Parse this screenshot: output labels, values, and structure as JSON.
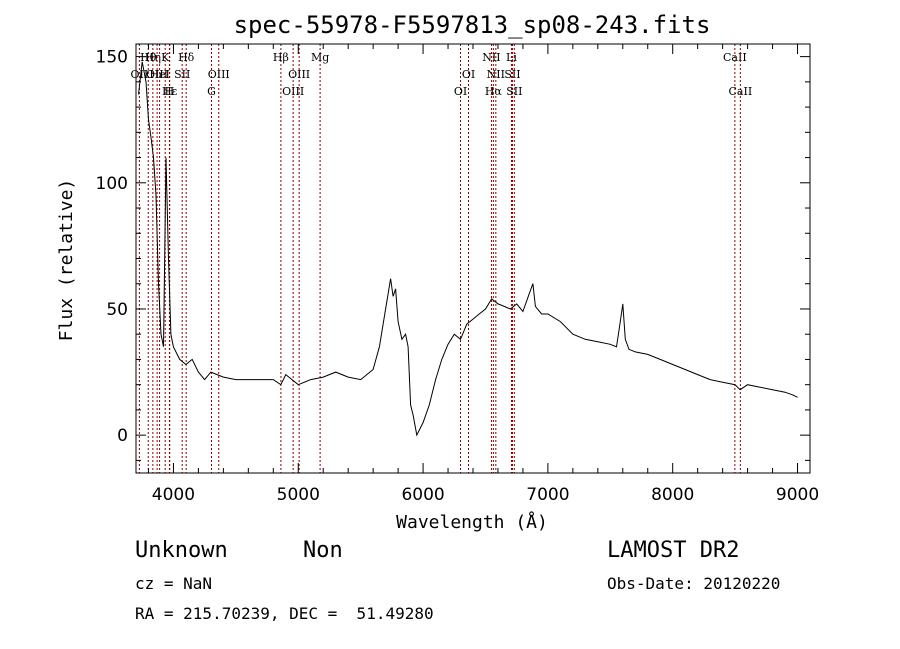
{
  "chart_data": {
    "type": "line",
    "title": "spec-55978-F5597813_sp08-243.fits",
    "xlabel": "Wavelength (Å)",
    "ylabel": "Flux (relative)",
    "xlim": [
      3700,
      9100
    ],
    "ylim": [
      -15,
      155
    ],
    "x_ticks": [
      4000,
      5000,
      6000,
      7000,
      8000,
      9000
    ],
    "y_ticks": [
      0,
      50,
      100,
      150
    ],
    "grid": false,
    "legend": "none",
    "series": [
      {
        "color": "#000000",
        "x": [
          3720,
          3750,
          3780,
          3800,
          3820,
          3840,
          3860,
          3880,
          3900,
          3920,
          3940,
          3960,
          3980,
          4000,
          4050,
          4100,
          4150,
          4200,
          4250,
          4300,
          4350,
          4400,
          4500,
          4600,
          4700,
          4800,
          4860,
          4900,
          5000,
          5100,
          5200,
          5300,
          5400,
          5500,
          5600,
          5650,
          5700,
          5740,
          5760,
          5780,
          5800,
          5830,
          5860,
          5880,
          5900,
          5920,
          5950,
          6000,
          6050,
          6100,
          6150,
          6200,
          6250,
          6300,
          6350,
          6400,
          6450,
          6500,
          6550,
          6600,
          6650,
          6700,
          6750,
          6800,
          6850,
          6880,
          6900,
          6950,
          7000,
          7100,
          7200,
          7300,
          7400,
          7500,
          7550,
          7580,
          7600,
          7620,
          7650,
          7700,
          7800,
          7900,
          8000,
          8100,
          8200,
          8300,
          8400,
          8500,
          8540,
          8600,
          8700,
          8800,
          8900,
          8960,
          9000
        ],
        "y": [
          135,
          148,
          140,
          125,
          118,
          110,
          95,
          60,
          40,
          35,
          110,
          70,
          40,
          35,
          30,
          28,
          30,
          25,
          22,
          25,
          24,
          23,
          22,
          22,
          22,
          22,
          20,
          24,
          20,
          22,
          23,
          25,
          23,
          22,
          26,
          35,
          50,
          62,
          55,
          58,
          45,
          38,
          40,
          35,
          12,
          8,
          0,
          5,
          12,
          22,
          30,
          36,
          40,
          38,
          44,
          46,
          48,
          50,
          54,
          52,
          51,
          50,
          52,
          49,
          56,
          60,
          51,
          48,
          48,
          45,
          40,
          38,
          37,
          36,
          35,
          45,
          52,
          38,
          34,
          33,
          32,
          30,
          28,
          26,
          24,
          22,
          21,
          20,
          18,
          20,
          19,
          18,
          17,
          16,
          15
        ]
      }
    ],
    "lines": [
      {
        "label": "OII",
        "wavelength": 3727,
        "row": 2
      },
      {
        "label": "Hθ",
        "wavelength": 3798,
        "row": 1
      },
      {
        "label": "OIII",
        "wavelength": 3869,
        "row": 2
      },
      {
        "label": "Hη",
        "wavelength": 3835,
        "row": 1
      },
      {
        "label": "HeI",
        "wavelength": 3889,
        "row": 2
      },
      {
        "label": "K",
        "wavelength": 3934,
        "row": 1
      },
      {
        "label": "H",
        "wavelength": 3968,
        "row": 3
      },
      {
        "label": "Hε",
        "wavelength": 3970,
        "row": 3
      },
      {
        "label": "SII",
        "wavelength": 4070,
        "row": 2
      },
      {
        "label": "Hδ",
        "wavelength": 4102,
        "row": 1
      },
      {
        "label": "G",
        "wavelength": 4305,
        "row": 3
      },
      {
        "label": "OIII",
        "wavelength": 4363,
        "row": 2
      },
      {
        "label": "Hβ",
        "wavelength": 4861,
        "row": 1
      },
      {
        "label": "OIII",
        "wavelength": 4959,
        "row": 3
      },
      {
        "label": "OIII",
        "wavelength": 5007,
        "row": 2
      },
      {
        "label": "Mg",
        "wavelength": 5175,
        "row": 1
      },
      {
        "label": "OI",
        "wavelength": 6300,
        "row": 3
      },
      {
        "label": "OI",
        "wavelength": 6364,
        "row": 2
      },
      {
        "label": "NII",
        "wavelength": 6548,
        "row": 1
      },
      {
        "label": "Hα",
        "wavelength": 6563,
        "row": 3
      },
      {
        "label": "NII",
        "wavelength": 6583,
        "row": 2
      },
      {
        "label": "Li",
        "wavelength": 6708,
        "row": 1
      },
      {
        "label": "SII",
        "wavelength": 6716,
        "row": 2
      },
      {
        "label": "SII",
        "wavelength": 6731,
        "row": 3
      },
      {
        "label": "CaII",
        "wavelength": 8498,
        "row": 1
      },
      {
        "label": "CaII",
        "wavelength": 8542,
        "row": 3
      }
    ],
    "line_color": "#8b0000"
  },
  "info": {
    "object_class": "Unknown",
    "object_subclass": "Non",
    "survey": "LAMOST DR2",
    "redshift": "cz = NaN",
    "obs_date": "Obs-Date: 20120220",
    "coords": "RA = 215.70239, DEC =  51.49280"
  }
}
